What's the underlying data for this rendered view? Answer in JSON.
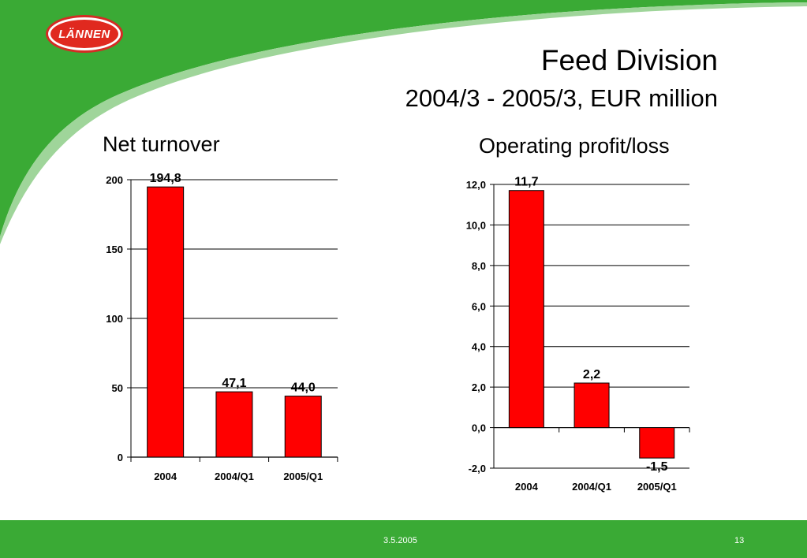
{
  "header": {
    "logo_text": "LÄNNEN",
    "title": "Feed Division",
    "subtitle": "2004/3 - 2005/3, EUR million"
  },
  "footer": {
    "date": "3.5.2005",
    "page": "13"
  },
  "colors": {
    "green": "#3aaa35",
    "bar": "#ff0000",
    "logo_red": "#e0291f"
  },
  "chart_data": [
    {
      "type": "bar",
      "title": "Net turnover",
      "categories": [
        "2004",
        "2004/Q1",
        "2005/Q1"
      ],
      "values": [
        194.8,
        47.1,
        44.0
      ],
      "data_labels": [
        "194,8",
        "47,1",
        "44,0"
      ],
      "yticks": [
        0,
        50,
        100,
        150,
        200
      ],
      "ytick_labels": [
        "0",
        "50",
        "100",
        "150",
        "200"
      ],
      "ylim": [
        0,
        200
      ],
      "xlabel": "",
      "ylabel": "",
      "grid": true
    },
    {
      "type": "bar",
      "title": "Operating profit/loss",
      "categories": [
        "2004",
        "2004/Q1",
        "2005/Q1"
      ],
      "values": [
        11.7,
        2.2,
        -1.5
      ],
      "data_labels": [
        "11,7",
        "2,2",
        "-1,5"
      ],
      "yticks": [
        -2,
        0,
        2,
        4,
        6,
        8,
        10,
        12
      ],
      "ytick_labels": [
        "-2,0",
        "0,0",
        "2,0",
        "4,0",
        "6,0",
        "8,0",
        "10,0",
        "12,0"
      ],
      "ylim": [
        -2,
        12
      ],
      "xlabel": "",
      "ylabel": "",
      "grid": true
    }
  ]
}
